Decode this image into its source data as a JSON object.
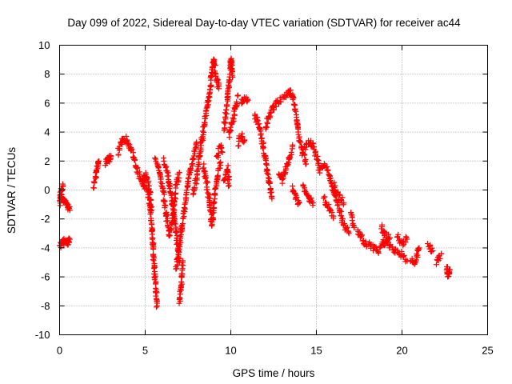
{
  "chart_data": {
    "type": "scatter",
    "title": "Day 099 of 2022, Sidereal Day-to-day VTEC variation (SDTVAR) for receiver ac44",
    "xlabel": "GPS time / hours",
    "ylabel": "SDTVAR / TECUs",
    "xlim": [
      0,
      25
    ],
    "ylim": [
      -10,
      10
    ],
    "xticks": [
      0,
      5,
      10,
      15,
      20,
      25
    ],
    "yticks": [
      -10,
      -8,
      -6,
      -4,
      -2,
      0,
      2,
      4,
      6,
      8,
      10
    ],
    "xtick_labels": [
      "0",
      "5",
      "10",
      "15",
      "20",
      "25"
    ],
    "ytick_labels": [
      "-10",
      "-8",
      "-6",
      "-4",
      "-2",
      "0",
      "2",
      "4",
      "6",
      "8",
      "10"
    ],
    "grid": true,
    "marker": "+",
    "color": "#ff0000",
    "series": [
      {
        "name": "ac44",
        "segments": [
          [
            [
              0.0,
              -0.3
            ],
            [
              0.15,
              -0.5
            ],
            [
              0.3,
              -0.8
            ],
            [
              0.45,
              -1.1
            ],
            [
              0.6,
              -1.4
            ]
          ],
          [
            [
              0.0,
              -1.0
            ],
            [
              0.05,
              -0.6
            ],
            [
              0.12,
              0.0
            ],
            [
              0.2,
              0.3
            ]
          ],
          [
            [
              0.0,
              -3.9
            ],
            [
              0.15,
              -3.7
            ],
            [
              0.3,
              -3.5
            ],
            [
              0.5,
              -3.6
            ],
            [
              0.6,
              -3.4
            ]
          ],
          [
            [
              2.0,
              0.2
            ],
            [
              2.1,
              1.0
            ],
            [
              2.2,
              1.6
            ],
            [
              2.3,
              2.0
            ]
          ],
          [
            [
              2.7,
              1.9
            ],
            [
              2.8,
              2.2
            ],
            [
              2.9,
              2.1
            ],
            [
              3.0,
              2.3
            ]
          ],
          [
            [
              3.4,
              2.5
            ],
            [
              3.6,
              3.2
            ],
            [
              3.8,
              3.6
            ],
            [
              4.0,
              3.3
            ],
            [
              4.2,
              2.8
            ],
            [
              4.4,
              2.0
            ],
            [
              4.6,
              1.2
            ],
            [
              4.8,
              0.6
            ],
            [
              5.0,
              0.2
            ],
            [
              5.2,
              -0.4
            ],
            [
              5.4,
              -2.6
            ],
            [
              5.5,
              -4.8
            ],
            [
              5.6,
              -6.5
            ],
            [
              5.7,
              -8.0
            ]
          ],
          [
            [
              4.8,
              0.6
            ],
            [
              5.0,
              1.0
            ],
            [
              5.2,
              0.4
            ],
            [
              5.3,
              -0.5
            ],
            [
              5.35,
              -1.4
            ]
          ],
          [
            [
              5.6,
              2.1
            ],
            [
              5.8,
              1.5
            ],
            [
              6.0,
              0.2
            ],
            [
              6.2,
              -1.5
            ],
            [
              6.4,
              -3.0
            ],
            [
              6.6,
              -2.2
            ],
            [
              6.8,
              0.3
            ],
            [
              7.0,
              1.2
            ]
          ],
          [
            [
              6.1,
              2.0
            ],
            [
              6.3,
              1.2
            ],
            [
              6.5,
              -0.2
            ],
            [
              6.7,
              -2.0
            ],
            [
              6.9,
              -3.9
            ],
            [
              7.0,
              -5.0
            ]
          ],
          [
            [
              6.8,
              -5.5
            ],
            [
              7.0,
              -3.8
            ],
            [
              7.2,
              -2.0
            ],
            [
              7.4,
              -0.4
            ],
            [
              7.6,
              1.2
            ],
            [
              7.8,
              2.2
            ],
            [
              8.0,
              3.3
            ]
          ],
          [
            [
              7.0,
              -7.8
            ],
            [
              7.1,
              -6.5
            ],
            [
              7.2,
              -5.0
            ]
          ],
          [
            [
              7.8,
              -0.2
            ],
            [
              8.0,
              0.8
            ],
            [
              8.2,
              2.6
            ],
            [
              8.4,
              4.2
            ],
            [
              8.6,
              5.6
            ],
            [
              8.8,
              7.0
            ],
            [
              8.9,
              8.4
            ],
            [
              9.0,
              9.1
            ],
            [
              9.1,
              8.2
            ],
            [
              9.2,
              7.6
            ],
            [
              9.3,
              7.0
            ]
          ],
          [
            [
              8.4,
              1.8
            ],
            [
              8.6,
              0.4
            ],
            [
              8.8,
              -1.2
            ],
            [
              8.9,
              -2.5
            ],
            [
              9.0,
              -1.0
            ],
            [
              9.2,
              0.8
            ],
            [
              9.4,
              1.9
            ]
          ],
          [
            [
              9.2,
              2.3
            ],
            [
              9.4,
              3.0
            ],
            [
              9.5,
              2.6
            ]
          ],
          [
            [
              9.6,
              4.2
            ],
            [
              9.8,
              6.2
            ],
            [
              10.0,
              8.8
            ],
            [
              10.05,
              9.0
            ],
            [
              10.1,
              7.8
            ]
          ],
          [
            [
              9.6,
              0.5
            ],
            [
              9.8,
              1.5
            ],
            [
              9.9,
              0.3
            ]
          ],
          [
            [
              9.9,
              3.8
            ],
            [
              10.0,
              4.4
            ],
            [
              10.2,
              5.2
            ],
            [
              10.4,
              6.5
            ]
          ],
          [
            [
              10.6,
              6.0
            ],
            [
              10.8,
              6.4
            ],
            [
              11.0,
              6.2
            ]
          ],
          [
            [
              10.4,
              3.2
            ],
            [
              10.6,
              3.8
            ],
            [
              10.8,
              3.4
            ]
          ],
          [
            [
              11.4,
              5.2
            ],
            [
              11.6,
              4.6
            ],
            [
              11.8,
              3.6
            ],
            [
              12.0,
              2.2
            ],
            [
              12.2,
              0.8
            ],
            [
              12.4,
              -0.6
            ]
          ],
          [
            [
              12.0,
              4.2
            ],
            [
              12.2,
              5.0
            ],
            [
              12.4,
              5.6
            ],
            [
              12.6,
              5.9
            ],
            [
              13.0,
              6.3
            ],
            [
              13.4,
              6.8
            ],
            [
              13.6,
              6.6
            ],
            [
              13.8,
              5.2
            ],
            [
              14.0,
              3.6
            ],
            [
              14.2,
              2.6
            ],
            [
              14.4,
              1.8
            ]
          ],
          [
            [
              12.8,
              1.2
            ],
            [
              13.0,
              0.6
            ],
            [
              13.2,
              1.4
            ],
            [
              13.4,
              2.2
            ],
            [
              13.6,
              3.0
            ]
          ],
          [
            [
              13.6,
              0.2
            ],
            [
              13.8,
              -0.6
            ],
            [
              14.0,
              -0.9
            ]
          ],
          [
            [
              14.2,
              2.6
            ],
            [
              14.6,
              3.4
            ],
            [
              14.8,
              3.0
            ],
            [
              15.0,
              2.4
            ],
            [
              15.2,
              1.4
            ]
          ],
          [
            [
              14.2,
              0.4
            ],
            [
              14.4,
              -0.2
            ],
            [
              14.6,
              -0.6
            ],
            [
              14.8,
              -0.9
            ]
          ],
          [
            [
              15.2,
              1.4
            ],
            [
              15.5,
              1.8
            ],
            [
              15.8,
              1.0
            ],
            [
              16.0,
              -0.2
            ],
            [
              16.2,
              -0.8
            ],
            [
              16.4,
              -1.6
            ],
            [
              16.6,
              -2.4
            ],
            [
              16.9,
              -3.0
            ]
          ],
          [
            [
              15.4,
              -0.5
            ],
            [
              15.7,
              -1.2
            ],
            [
              16.0,
              -1.8
            ]
          ],
          [
            [
              16.0,
              0.4
            ],
            [
              16.3,
              -0.4
            ],
            [
              16.6,
              -0.9
            ]
          ],
          [
            [
              17.0,
              -1.6
            ],
            [
              17.2,
              -2.6
            ]
          ],
          [
            [
              17.4,
              -2.8
            ],
            [
              17.8,
              -3.6
            ],
            [
              18.2,
              -3.9
            ],
            [
              18.6,
              -4.3
            ],
            [
              18.9,
              -3.6
            ],
            [
              19.2,
              -3.8
            ],
            [
              19.6,
              -4.2
            ],
            [
              20.0,
              -4.5
            ],
            [
              20.3,
              -4.9
            ]
          ],
          [
            [
              18.8,
              -2.5
            ],
            [
              19.0,
              -3.1
            ],
            [
              19.3,
              -3.3
            ]
          ],
          [
            [
              19.7,
              -3.2
            ],
            [
              20.0,
              -3.7
            ],
            [
              20.3,
              -3.4
            ]
          ],
          [
            [
              20.5,
              -4.8
            ],
            [
              20.8,
              -5.0
            ],
            [
              21.0,
              -4.0
            ]
          ],
          [
            [
              21.5,
              -3.8
            ],
            [
              21.8,
              -4.2
            ]
          ],
          [
            [
              22.0,
              -5.0
            ],
            [
              22.3,
              -4.4
            ]
          ],
          [
            [
              22.6,
              -5.3
            ],
            [
              22.7,
              -5.8
            ],
            [
              22.8,
              -5.5
            ]
          ]
        ]
      }
    ]
  }
}
